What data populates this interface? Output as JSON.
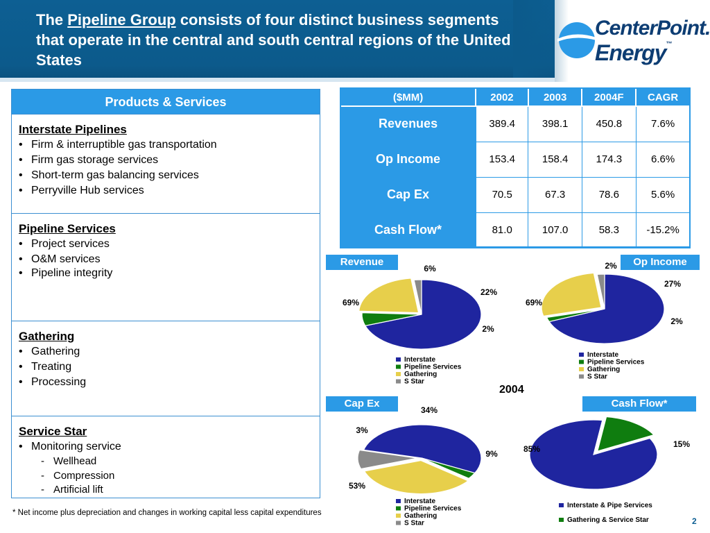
{
  "header": {
    "title_pre": "The ",
    "title_link": "Pipeline Group",
    "title_post": " consists of four distinct business segments that operate in the central and south central regions of the United States"
  },
  "logo": {
    "line1": "CenterPoint.",
    "line2": "Energy",
    "tm": "™"
  },
  "services": {
    "heading": "Products & Services",
    "segments": [
      {
        "title": "Interstate Pipelines",
        "items": [
          "Firm & interruptible gas transportation",
          "Firm gas storage services",
          "Short-term gas balancing services",
          "Perryville Hub services"
        ]
      },
      {
        "title": "Pipeline Services",
        "items": [
          "Project services",
          "O&M services",
          "Pipeline integrity"
        ]
      },
      {
        "title": "Gathering",
        "items": [
          "Gathering",
          "Treating",
          "Processing"
        ]
      },
      {
        "title": "Service Star",
        "items": [
          "Monitoring service"
        ],
        "subitems": [
          "Wellhead",
          "Compression",
          "Artificial lift"
        ]
      }
    ],
    "bullet": "•",
    "dash": "-"
  },
  "financials": {
    "columns": [
      "($MM)",
      "2002",
      "2003",
      "2004F",
      "CAGR"
    ],
    "rows": [
      {
        "label": "Revenues",
        "values": [
          "389.4",
          "398.1",
          "450.8",
          "7.6%"
        ]
      },
      {
        "label": "Op Income",
        "values": [
          "153.4",
          "158.4",
          "174.3",
          "6.6%"
        ]
      },
      {
        "label": "Cap Ex",
        "values": [
          "70.5",
          "67.3",
          "78.6",
          "5.6%"
        ]
      },
      {
        "label": "Cash Flow*",
        "values": [
          "81.0",
          "107.0",
          "58.3",
          "-15.2%"
        ]
      }
    ]
  },
  "colors": {
    "interstate": "#1f259f",
    "pipeline_services": "#0f7d0f",
    "gathering": "#e7cf4b",
    "s_star": "#8a8a8a",
    "accent": "#2b9ae6",
    "header": "#0c5a8b"
  },
  "year_label": "2004",
  "footnote": "* Net income plus depreciation and changes in working capital less capital expenditures",
  "page_number": "2",
  "chart_data": [
    {
      "type": "pie",
      "title": "Revenue",
      "categories": [
        "Interstate",
        "Pipeline Services",
        "Gathering",
        "S Star"
      ],
      "values": [
        69,
        6,
        22,
        2
      ],
      "labels": [
        "69%",
        "6%",
        "22%",
        "2%"
      ]
    },
    {
      "type": "pie",
      "title": "Op Income",
      "categories": [
        "Interstate",
        "Pipeline Services",
        "Gathering",
        "S Star"
      ],
      "values": [
        69,
        2,
        27,
        2
      ],
      "labels": [
        "69%",
        "2%",
        "27%",
        "2%"
      ]
    },
    {
      "type": "pie",
      "title": "Cap Ex",
      "categories": [
        "Interstate",
        "Pipeline Services",
        "Gathering",
        "S Star"
      ],
      "values": [
        53,
        3,
        34,
        9
      ],
      "labels": [
        "53%",
        "3%",
        "34%",
        "9%"
      ]
    },
    {
      "type": "pie",
      "title": "Cash Flow*",
      "categories": [
        "Interstate & Pipe Services",
        "Gathering & Service Star"
      ],
      "values": [
        85,
        15
      ],
      "labels": [
        "85%",
        "15%"
      ]
    }
  ]
}
